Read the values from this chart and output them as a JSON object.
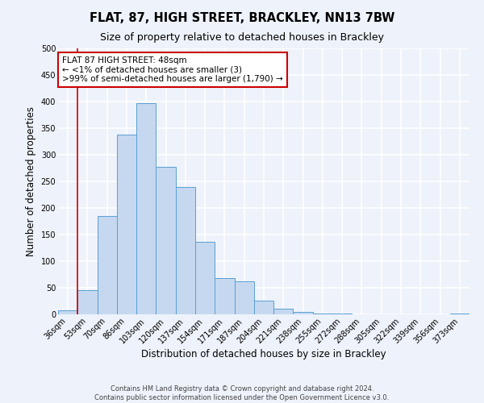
{
  "title": "FLAT, 87, HIGH STREET, BRACKLEY, NN13 7BW",
  "subtitle": "Size of property relative to detached houses in Brackley",
  "xlabel": "Distribution of detached houses by size in Brackley",
  "ylabel": "Number of detached properties",
  "bar_labels": [
    "36sqm",
    "53sqm",
    "70sqm",
    "86sqm",
    "103sqm",
    "120sqm",
    "137sqm",
    "154sqm",
    "171sqm",
    "187sqm",
    "204sqm",
    "221sqm",
    "238sqm",
    "255sqm",
    "272sqm",
    "288sqm",
    "305sqm",
    "322sqm",
    "339sqm",
    "356sqm",
    "373sqm"
  ],
  "bar_heights": [
    8,
    46,
    185,
    338,
    397,
    277,
    240,
    137,
    68,
    62,
    26,
    11,
    5,
    2,
    1,
    0,
    0,
    0,
    0,
    0,
    2
  ],
  "bar_color": "#c5d8f0",
  "bar_edge_color": "#5a9fd4",
  "annotation_title": "FLAT 87 HIGH STREET: 48sqm",
  "annotation_line1": "← <1% of detached houses are smaller (3)",
  "annotation_line2": ">99% of semi-detached houses are larger (1,790) →",
  "annotation_box_color": "#ffffff",
  "annotation_box_edge_color": "#cc0000",
  "vline_color": "#cc0000",
  "ylim": [
    0,
    500
  ],
  "yticks": [
    0,
    50,
    100,
    150,
    200,
    250,
    300,
    350,
    400,
    450,
    500
  ],
  "footer1": "Contains HM Land Registry data © Crown copyright and database right 2024.",
  "footer2": "Contains public sector information licensed under the Open Government Licence v3.0.",
  "background_color": "#eef2fa",
  "grid_color": "#ffffff",
  "title_fontsize": 10.5,
  "subtitle_fontsize": 9,
  "axis_label_fontsize": 8.5,
  "tick_fontsize": 7,
  "footer_fontsize": 6,
  "annotation_fontsize": 7.5
}
